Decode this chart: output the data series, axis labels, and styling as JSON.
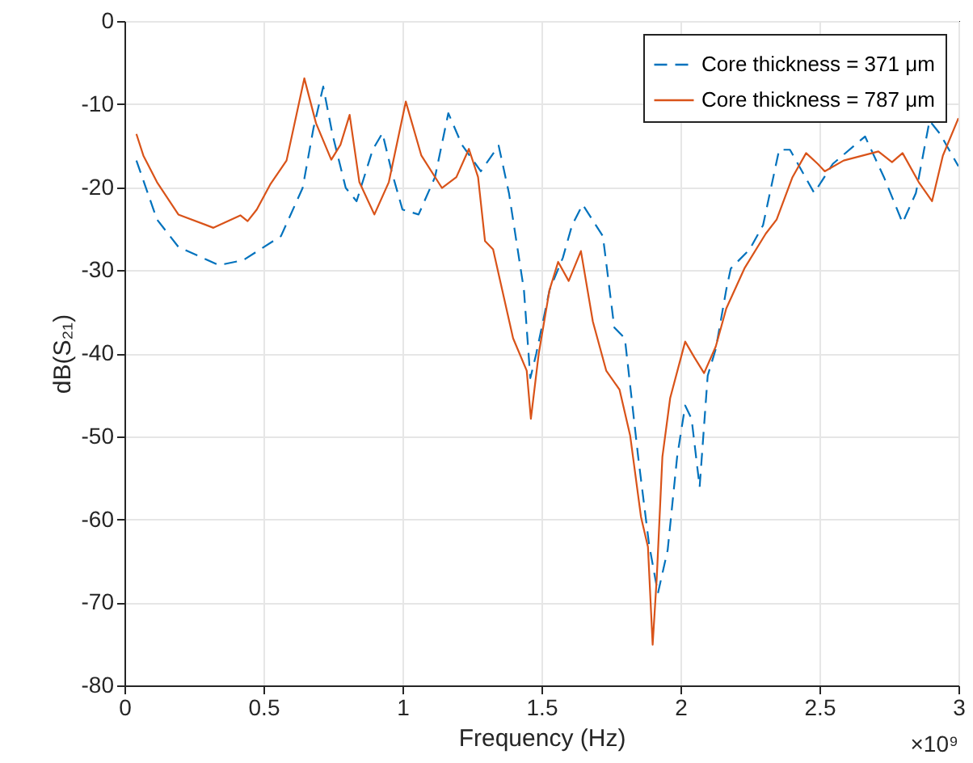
{
  "chart_data": {
    "type": "line",
    "xlabel": "Frequency (Hz)",
    "ylabel": "dB(S₂₁)",
    "annotations": [
      "×10⁹"
    ],
    "xlim": [
      0,
      3
    ],
    "ylim": [
      -80,
      0
    ],
    "xticks": [
      0,
      0.5,
      1,
      1.5,
      2,
      2.5,
      3
    ],
    "yticks": [
      -80,
      -70,
      -60,
      -50,
      -40,
      -30,
      -20,
      -10,
      0
    ],
    "grid": true,
    "legend": "top right",
    "series": [
      {
        "name": "Core thickness = 371 μm",
        "color": "#0072bd",
        "line_style": "dashed",
        "x": [
          0.043,
          0.117,
          0.194,
          0.34,
          0.427,
          0.563,
          0.641,
          0.68,
          0.715,
          0.748,
          0.796,
          0.835,
          0.893,
          0.928,
          0.961,
          1.0,
          1.058,
          1.117,
          1.165,
          1.214,
          1.282,
          1.346,
          1.383,
          1.437,
          1.46,
          1.481,
          1.529,
          1.577,
          1.61,
          1.648,
          1.721,
          1.762,
          1.8,
          1.848,
          1.887,
          1.919,
          1.954,
          1.988,
          2.017,
          2.04,
          2.069,
          2.098,
          2.127,
          2.165,
          2.181,
          2.249,
          2.297,
          2.355,
          2.394,
          2.481,
          2.548,
          2.664,
          2.732,
          2.799,
          2.847,
          2.896,
          2.934,
          3.0
        ],
        "values": [
          -16.8,
          -23.9,
          -27.2,
          -29.4,
          -28.8,
          -25.9,
          -20.1,
          -12.9,
          -7.9,
          -13.6,
          -20.1,
          -21.7,
          -15.5,
          -13.5,
          -18.1,
          -22.7,
          -23.3,
          -18.8,
          -11.1,
          -14.9,
          -18.1,
          -15.0,
          -20.7,
          -32.4,
          -43.0,
          -40.1,
          -32.4,
          -28.5,
          -24.6,
          -22.1,
          -25.9,
          -36.9,
          -38.2,
          -52.5,
          -63.0,
          -68.9,
          -63.7,
          -52.5,
          -46.3,
          -47.9,
          -56.1,
          -42.7,
          -39.5,
          -32.3,
          -29.8,
          -27.5,
          -24.6,
          -15.5,
          -15.5,
          -20.7,
          -17.2,
          -13.9,
          -18.8,
          -24.3,
          -20.7,
          -12.0,
          -13.6,
          -17.5
        ]
      },
      {
        "name": "Core thickness = 787 μm",
        "color": "#d95319",
        "line_style": "solid",
        "x": [
          0.043,
          0.068,
          0.117,
          0.194,
          0.32,
          0.417,
          0.443,
          0.476,
          0.524,
          0.583,
          0.647,
          0.689,
          0.744,
          0.777,
          0.81,
          0.845,
          0.899,
          0.951,
          1.012,
          1.068,
          1.142,
          1.194,
          1.239,
          1.272,
          1.297,
          1.326,
          1.359,
          1.398,
          1.447,
          1.462,
          1.49,
          1.529,
          1.56,
          1.598,
          1.642,
          1.685,
          1.733,
          1.781,
          1.819,
          1.858,
          1.883,
          1.9,
          1.915,
          1.935,
          1.963,
          2.017,
          2.05,
          2.085,
          2.127,
          2.165,
          2.23,
          2.307,
          2.346,
          2.403,
          2.452,
          2.494,
          2.519,
          2.587,
          2.712,
          2.761,
          2.799,
          2.857,
          2.905,
          2.944,
          3.0
        ],
        "values": [
          -13.6,
          -16.2,
          -19.4,
          -23.3,
          -24.9,
          -23.4,
          -24.1,
          -22.7,
          -19.7,
          -16.8,
          -6.9,
          -12.3,
          -16.7,
          -14.9,
          -11.3,
          -19.4,
          -23.3,
          -19.4,
          -9.7,
          -16.2,
          -20.1,
          -18.8,
          -15.4,
          -18.8,
          -26.5,
          -27.5,
          -32.4,
          -38.2,
          -42.1,
          -47.9,
          -40.1,
          -32.4,
          -29.0,
          -31.3,
          -27.7,
          -36.2,
          -42.1,
          -44.4,
          -49.9,
          -59.7,
          -63.3,
          -75.1,
          -66.9,
          -52.5,
          -45.4,
          -38.6,
          -40.5,
          -42.4,
          -39.2,
          -34.6,
          -29.8,
          -25.6,
          -23.9,
          -18.8,
          -15.9,
          -17.2,
          -18.1,
          -16.8,
          -15.7,
          -17.0,
          -15.9,
          -19.4,
          -21.7,
          -16.2,
          -11.7
        ]
      }
    ]
  }
}
